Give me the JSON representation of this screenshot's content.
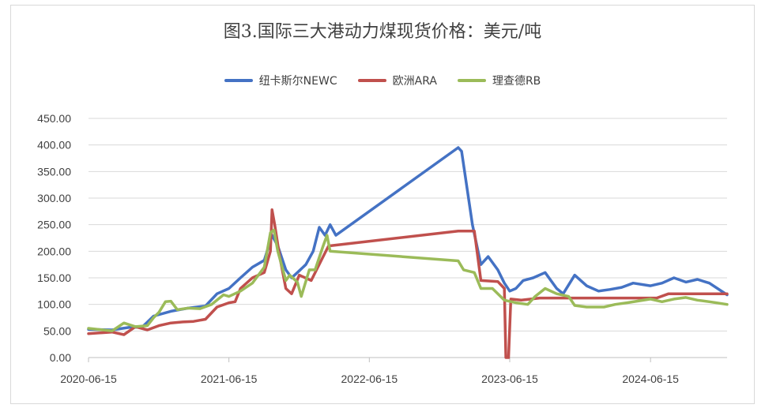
{
  "chart_data": {
    "type": "line",
    "title": "图3.国际三大港动力煤现货价格：美元/吨",
    "xlabel": "",
    "ylabel": "",
    "ylim": [
      0,
      450
    ],
    "y_ticks": [
      "0.00",
      "50.00",
      "100.00",
      "150.00",
      "200.00",
      "250.00",
      "300.00",
      "350.00",
      "400.00",
      "450.00"
    ],
    "x_range": [
      "2020-06-15",
      "2024-12-31"
    ],
    "x_ticks": [
      "2020-06-15",
      "2021-06-15",
      "2022-06-15",
      "2023-06-15",
      "2024-06-15"
    ],
    "legend_position": "top",
    "grid": "horizontal",
    "series": [
      {
        "name": "纽卡斯尔NEWC",
        "color": "#4472c4",
        "points": [
          [
            "2020-06-15",
            53
          ],
          [
            "2020-08-15",
            52
          ],
          [
            "2020-10-01",
            57
          ],
          [
            "2020-11-01",
            57
          ],
          [
            "2020-12-01",
            78
          ],
          [
            "2021-01-15",
            87
          ],
          [
            "2021-03-01",
            93
          ],
          [
            "2021-04-15",
            97
          ],
          [
            "2021-05-15",
            120
          ],
          [
            "2021-06-15",
            130
          ],
          [
            "2021-07-15",
            150
          ],
          [
            "2021-08-15",
            170
          ],
          [
            "2021-09-15",
            183
          ],
          [
            "2021-10-05",
            230
          ],
          [
            "2021-10-20",
            210
          ],
          [
            "2021-11-10",
            165
          ],
          [
            "2021-11-25",
            150
          ],
          [
            "2021-12-10",
            160
          ],
          [
            "2022-01-01",
            175
          ],
          [
            "2022-01-20",
            200
          ],
          [
            "2022-02-05",
            245
          ],
          [
            "2022-02-20",
            230
          ],
          [
            "2022-03-05",
            250
          ],
          [
            "2022-03-20",
            230
          ],
          [
            "2023-02-01",
            395
          ],
          [
            "2023-02-10",
            388
          ],
          [
            "2023-03-10",
            250
          ],
          [
            "2023-04-01",
            175
          ],
          [
            "2023-04-20",
            190
          ],
          [
            "2023-05-15",
            165
          ],
          [
            "2023-06-01",
            140
          ],
          [
            "2023-06-15",
            125
          ],
          [
            "2023-07-01",
            130
          ],
          [
            "2023-07-20",
            145
          ],
          [
            "2023-08-15",
            150
          ],
          [
            "2023-09-15",
            160
          ],
          [
            "2023-10-15",
            130
          ],
          [
            "2023-11-01",
            120
          ],
          [
            "2023-12-01",
            155
          ],
          [
            "2024-01-01",
            135
          ],
          [
            "2024-02-01",
            125
          ],
          [
            "2024-03-01",
            128
          ],
          [
            "2024-04-01",
            132
          ],
          [
            "2024-05-01",
            140
          ],
          [
            "2024-06-15",
            135
          ],
          [
            "2024-07-15",
            140
          ],
          [
            "2024-08-15",
            150
          ],
          [
            "2024-09-15",
            142
          ],
          [
            "2024-10-15",
            147
          ],
          [
            "2024-11-15",
            140
          ],
          [
            "2024-12-31",
            118
          ]
        ]
      },
      {
        "name": "欧洲ARA",
        "color": "#c0504d",
        "points": [
          [
            "2020-06-15",
            45
          ],
          [
            "2020-08-15",
            48
          ],
          [
            "2020-09-15",
            43
          ],
          [
            "2020-10-15",
            58
          ],
          [
            "2020-11-15",
            52
          ],
          [
            "2020-12-15",
            60
          ],
          [
            "2021-01-15",
            65
          ],
          [
            "2021-02-15",
            67
          ],
          [
            "2021-03-15",
            68
          ],
          [
            "2021-04-15",
            72
          ],
          [
            "2021-05-15",
            95
          ],
          [
            "2021-06-15",
            103
          ],
          [
            "2021-07-01",
            105
          ],
          [
            "2021-07-15",
            130
          ],
          [
            "2021-08-15",
            150
          ],
          [
            "2021-09-15",
            160
          ],
          [
            "2021-10-01",
            200
          ],
          [
            "2021-10-05",
            278
          ],
          [
            "2021-10-12",
            250
          ],
          [
            "2021-10-25",
            190
          ],
          [
            "2021-11-10",
            130
          ],
          [
            "2021-11-25",
            120
          ],
          [
            "2021-12-15",
            155
          ],
          [
            "2022-01-15",
            145
          ],
          [
            "2022-02-15",
            190
          ],
          [
            "2022-03-01",
            210
          ],
          [
            "2023-02-01",
            238
          ],
          [
            "2023-03-15",
            238
          ],
          [
            "2023-04-01",
            145
          ],
          [
            "2023-05-15",
            143
          ],
          [
            "2023-06-01",
            130
          ],
          [
            "2023-06-05",
            0
          ],
          [
            "2023-06-12",
            0
          ],
          [
            "2023-06-18",
            110
          ],
          [
            "2023-07-15",
            108
          ],
          [
            "2023-09-01",
            112
          ],
          [
            "2024-06-01",
            112
          ],
          [
            "2024-07-01",
            112
          ],
          [
            "2024-08-01",
            120
          ],
          [
            "2024-12-31",
            120
          ]
        ]
      },
      {
        "name": "理查德RB",
        "color": "#9bbb59",
        "points": [
          [
            "2020-06-15",
            55
          ],
          [
            "2020-08-15",
            50
          ],
          [
            "2020-09-15",
            65
          ],
          [
            "2020-10-15",
            58
          ],
          [
            "2020-11-15",
            60
          ],
          [
            "2020-12-01",
            75
          ],
          [
            "2020-12-15",
            85
          ],
          [
            "2021-01-01",
            105
          ],
          [
            "2021-01-15",
            106
          ],
          [
            "2021-02-01",
            90
          ],
          [
            "2021-03-01",
            93
          ],
          [
            "2021-04-01",
            92
          ],
          [
            "2021-05-01",
            100
          ],
          [
            "2021-06-01",
            118
          ],
          [
            "2021-06-15",
            115
          ],
          [
            "2021-07-15",
            125
          ],
          [
            "2021-08-15",
            140
          ],
          [
            "2021-09-15",
            170
          ],
          [
            "2021-10-01",
            235
          ],
          [
            "2021-10-10",
            240
          ],
          [
            "2021-10-20",
            200
          ],
          [
            "2021-11-10",
            145
          ],
          [
            "2021-11-20",
            155
          ],
          [
            "2021-12-10",
            142
          ],
          [
            "2021-12-20",
            115
          ],
          [
            "2022-01-10",
            165
          ],
          [
            "2022-01-25",
            165
          ],
          [
            "2022-02-15",
            210
          ],
          [
            "2022-02-25",
            230
          ],
          [
            "2022-03-05",
            200
          ],
          [
            "2023-02-01",
            182
          ],
          [
            "2023-02-15",
            165
          ],
          [
            "2023-03-15",
            160
          ],
          [
            "2023-04-01",
            130
          ],
          [
            "2023-05-01",
            130
          ],
          [
            "2023-06-01",
            108
          ],
          [
            "2023-07-01",
            103
          ],
          [
            "2023-08-01",
            100
          ],
          [
            "2023-08-20",
            115
          ],
          [
            "2023-09-15",
            130
          ],
          [
            "2023-10-15",
            120
          ],
          [
            "2023-11-15",
            115
          ],
          [
            "2023-12-01",
            98
          ],
          [
            "2024-01-01",
            95
          ],
          [
            "2024-02-15",
            95
          ],
          [
            "2024-03-15",
            100
          ],
          [
            "2024-04-15",
            103
          ],
          [
            "2024-06-15",
            110
          ],
          [
            "2024-07-15",
            105
          ],
          [
            "2024-08-15",
            110
          ],
          [
            "2024-09-15",
            113
          ],
          [
            "2024-10-15",
            108
          ],
          [
            "2024-11-15",
            105
          ],
          [
            "2024-12-31",
            100
          ]
        ]
      }
    ]
  }
}
